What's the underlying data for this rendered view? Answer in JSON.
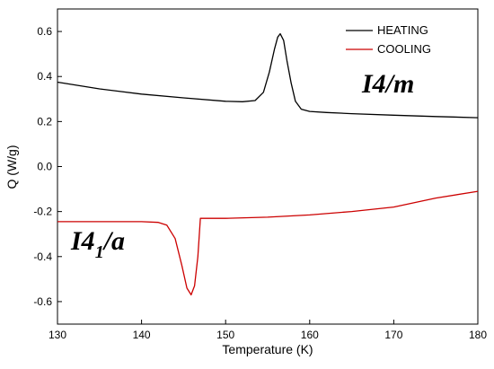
{
  "chart_data": {
    "type": "line",
    "xlabel": "Temperature (K)",
    "ylabel": "Q (W/g)",
    "xlim": [
      130,
      180
    ],
    "ylim": [
      -0.7,
      0.7
    ],
    "xticks": [
      130,
      140,
      150,
      160,
      170,
      180
    ],
    "xtick_labels": [
      "130",
      "140",
      "150",
      "160",
      "170",
      "180"
    ],
    "yticks": [
      -0.6,
      -0.4,
      -0.2,
      0.0,
      0.2,
      0.4,
      0.6
    ],
    "ytick_labels": [
      "-0.6",
      "-0.4",
      "-0.2",
      "0.0",
      "0.2",
      "0.4",
      "0.6"
    ],
    "legend_position": "top-right",
    "series": [
      {
        "name": "HEATING",
        "color": "#000000",
        "x": [
          130,
          135,
          140,
          145,
          150,
          152,
          153.5,
          154.5,
          155.2,
          155.8,
          156.2,
          156.5,
          156.9,
          157.3,
          157.8,
          158.3,
          159,
          160,
          162,
          165,
          170,
          175,
          180
        ],
        "y": [
          0.375,
          0.345,
          0.322,
          0.305,
          0.29,
          0.288,
          0.293,
          0.33,
          0.42,
          0.52,
          0.575,
          0.59,
          0.56,
          0.47,
          0.37,
          0.29,
          0.255,
          0.245,
          0.24,
          0.235,
          0.228,
          0.222,
          0.217
        ]
      },
      {
        "name": "COOLING",
        "color": "#cc0000",
        "x": [
          130,
          135,
          140,
          142,
          143,
          144,
          144.8,
          145.4,
          145.9,
          146.3,
          146.7,
          147.0,
          148,
          150,
          155,
          160,
          165,
          170,
          175,
          180
        ],
        "y": [
          -0.245,
          -0.245,
          -0.245,
          -0.248,
          -0.26,
          -0.32,
          -0.44,
          -0.54,
          -0.57,
          -0.53,
          -0.4,
          -0.23,
          -0.23,
          -0.23,
          -0.225,
          -0.215,
          -0.2,
          -0.18,
          -0.14,
          -0.11
        ]
      }
    ],
    "annotations": [
      {
        "text": "I4/m",
        "x": 161.5,
        "y": 0.43
      },
      {
        "main": "I4",
        "sub": "1",
        "rest": "/a",
        "x": 133,
        "y": -0.42
      }
    ]
  }
}
